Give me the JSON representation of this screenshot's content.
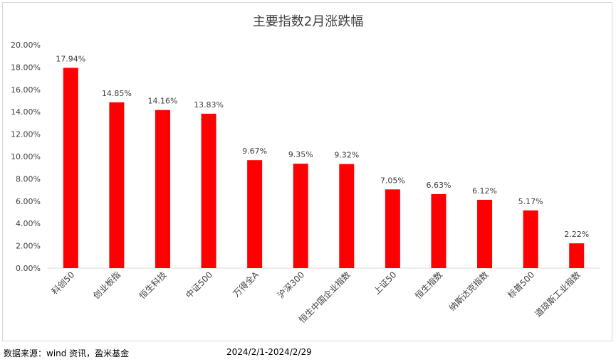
{
  "chart_data": {
    "type": "bar",
    "title": "主要指数2月涨跌幅",
    "categories": [
      "科创50",
      "创业板指",
      "恒生科技",
      "中证500",
      "万得全A",
      "沪深300",
      "恒生中国企业指数",
      "上证50",
      "恒生指数",
      "纳斯达克指数",
      "标普500",
      "道琼斯工业指数"
    ],
    "values": [
      17.94,
      14.85,
      14.16,
      13.83,
      9.67,
      9.35,
      9.32,
      7.05,
      6.63,
      6.12,
      5.17,
      2.22
    ],
    "value_labels": [
      "17.94%",
      "14.85%",
      "14.16%",
      "13.83%",
      "9.67%",
      "9.35%",
      "9.32%",
      "7.05%",
      "6.63%",
      "6.12%",
      "5.17%",
      "2.22%"
    ],
    "ylim": [
      0,
      20
    ],
    "yticks": [
      "0.00%",
      "2.00%",
      "4.00%",
      "6.00%",
      "8.00%",
      "10.00%",
      "12.00%",
      "14.00%",
      "16.00%",
      "18.00%",
      "20.00%"
    ],
    "xlabel": "",
    "ylabel": "",
    "grid": false,
    "bar_color": "#ff0000"
  },
  "footer": {
    "source": "数据来源：wind 资讯，盈米基金",
    "date_range": "2024/2/1-2024/2/29"
  }
}
